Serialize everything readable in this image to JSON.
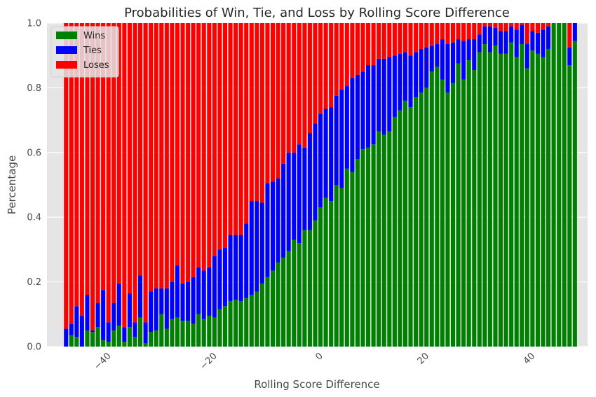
{
  "chart_data": {
    "type": "bar",
    "stacked": true,
    "title": "Probabilities of Win, Tie, and Loss by Rolling Score Difference",
    "xlabel": "Rolling Score Difference",
    "ylabel": "Percentage",
    "xlim": [
      -51.6,
      50.4
    ],
    "ylim": [
      0,
      1
    ],
    "xticks": [
      -40,
      -20,
      0,
      20,
      40
    ],
    "xtick_labels": [
      "−40",
      "−20",
      "0",
      "20",
      "40"
    ],
    "yticks": [
      0,
      0.2,
      0.4,
      0.6,
      0.8,
      1.0
    ],
    "ytick_labels": [
      "0.0",
      "0.2",
      "0.4",
      "0.6",
      "0.8",
      "1.0"
    ],
    "grid": true,
    "legend_position": "top-left",
    "x": [
      -48,
      -47,
      -46,
      -45,
      -44,
      -43,
      -42,
      -41,
      -40,
      -39,
      -38,
      -37,
      -36,
      -35,
      -34,
      -33,
      -32,
      -31,
      -30,
      -29,
      -28,
      -27,
      -26,
      -25,
      -24,
      -23,
      -22,
      -21,
      -20,
      -19,
      -18,
      -17,
      -16,
      -15,
      -14,
      -13,
      -12,
      -11,
      -10,
      -9,
      -8,
      -7,
      -6,
      -5,
      -4,
      -3,
      -2,
      -1,
      0,
      1,
      2,
      3,
      4,
      5,
      6,
      7,
      8,
      9,
      10,
      11,
      12,
      13,
      14,
      15,
      16,
      17,
      18,
      19,
      20,
      21,
      22,
      23,
      24,
      25,
      26,
      27,
      28,
      29,
      30,
      31,
      32,
      33,
      34,
      35,
      36,
      37,
      38,
      39,
      40,
      41,
      42,
      43,
      44,
      45,
      46,
      47,
      48
    ],
    "series": [
      {
        "name": "Wins",
        "color": "#008000",
        "values": [
          0.0,
          0.035,
          0.03,
          0.0,
          0.05,
          0.045,
          0.06,
          0.02,
          0.015,
          0.05,
          0.065,
          0.015,
          0.06,
          0.03,
          0.09,
          0.01,
          0.045,
          0.05,
          0.1,
          0.055,
          0.085,
          0.09,
          0.08,
          0.08,
          0.07,
          0.1,
          0.085,
          0.095,
          0.09,
          0.115,
          0.125,
          0.14,
          0.145,
          0.14,
          0.15,
          0.16,
          0.17,
          0.195,
          0.215,
          0.235,
          0.26,
          0.275,
          0.295,
          0.33,
          0.32,
          0.36,
          0.36,
          0.39,
          0.43,
          0.46,
          0.45,
          0.5,
          0.49,
          0.55,
          0.54,
          0.58,
          0.61,
          0.615,
          0.625,
          0.665,
          0.655,
          0.665,
          0.71,
          0.73,
          0.76,
          0.74,
          0.77,
          0.785,
          0.8,
          0.85,
          0.865,
          0.825,
          0.785,
          0.815,
          0.875,
          0.825,
          0.885,
          0.855,
          0.91,
          0.935,
          0.91,
          0.93,
          0.905,
          0.905,
          0.94,
          0.895,
          0.935,
          0.86,
          0.915,
          0.905,
          0.895,
          0.92,
          1.0,
          1.0,
          1.0,
          0.87,
          0.945
        ]
      },
      {
        "name": "Ties",
        "color": "#0000ff",
        "values": [
          0.055,
          0.035,
          0.095,
          0.095,
          0.11,
          0.005,
          0.075,
          0.155,
          0.06,
          0.085,
          0.13,
          0.045,
          0.105,
          0.045,
          0.13,
          0.065,
          0.125,
          0.13,
          0.08,
          0.125,
          0.115,
          0.16,
          0.115,
          0.12,
          0.145,
          0.145,
          0.15,
          0.15,
          0.19,
          0.185,
          0.18,
          0.205,
          0.2,
          0.205,
          0.23,
          0.29,
          0.28,
          0.25,
          0.29,
          0.275,
          0.26,
          0.29,
          0.305,
          0.27,
          0.305,
          0.255,
          0.3,
          0.3,
          0.29,
          0.275,
          0.29,
          0.275,
          0.305,
          0.255,
          0.29,
          0.26,
          0.24,
          0.255,
          0.245,
          0.225,
          0.235,
          0.23,
          0.19,
          0.175,
          0.15,
          0.16,
          0.14,
          0.135,
          0.125,
          0.08,
          0.07,
          0.125,
          0.15,
          0.125,
          0.075,
          0.12,
          0.065,
          0.095,
          0.055,
          0.055,
          0.08,
          0.055,
          0.07,
          0.07,
          0.05,
          0.085,
          0.06,
          0.075,
          0.06,
          0.065,
          0.085,
          0.07,
          0.0,
          0.0,
          0.0,
          0.055,
          0.055
        ]
      },
      {
        "name": "Loses",
        "color": "#ff0000",
        "values": [
          0.945,
          0.93,
          0.875,
          0.905,
          0.84,
          0.95,
          0.865,
          0.825,
          0.925,
          0.865,
          0.805,
          0.94,
          0.835,
          0.925,
          0.78,
          0.925,
          0.83,
          0.82,
          0.82,
          0.82,
          0.8,
          0.75,
          0.805,
          0.8,
          0.785,
          0.755,
          0.765,
          0.755,
          0.72,
          0.7,
          0.695,
          0.655,
          0.655,
          0.655,
          0.62,
          0.55,
          0.55,
          0.555,
          0.495,
          0.49,
          0.48,
          0.435,
          0.4,
          0.4,
          0.375,
          0.385,
          0.34,
          0.31,
          0.28,
          0.265,
          0.26,
          0.225,
          0.205,
          0.195,
          0.17,
          0.16,
          0.15,
          0.13,
          0.13,
          0.11,
          0.11,
          0.105,
          0.1,
          0.095,
          0.09,
          0.1,
          0.09,
          0.08,
          0.075,
          0.07,
          0.065,
          0.05,
          0.065,
          0.06,
          0.05,
          0.055,
          0.05,
          0.05,
          0.035,
          0.01,
          0.01,
          0.015,
          0.025,
          0.025,
          0.01,
          0.02,
          0.005,
          0.065,
          0.025,
          0.03,
          0.02,
          0.01,
          0.0,
          0.0,
          0.0,
          0.075,
          0.0
        ]
      }
    ]
  },
  "colors": {
    "plot_background": "#e5e5e5",
    "gridline": "#ffffff"
  }
}
